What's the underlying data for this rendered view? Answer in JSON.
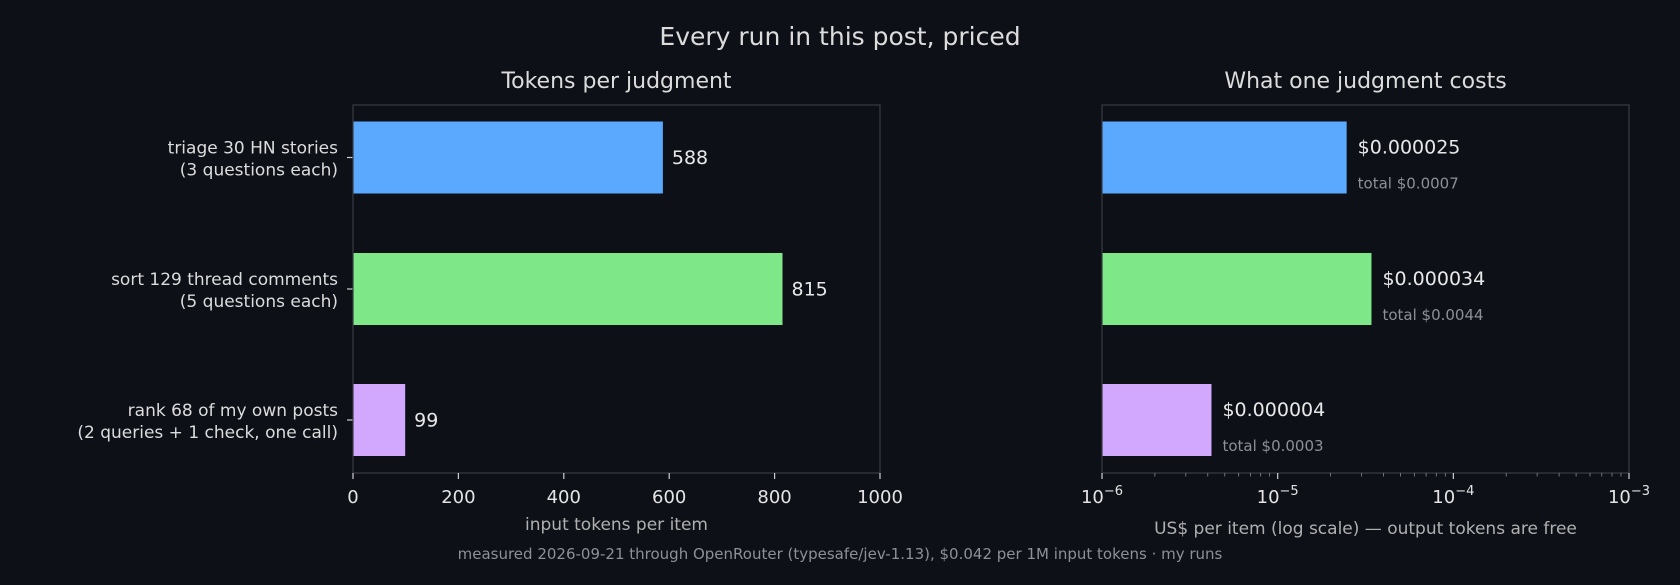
{
  "title": "Every run in this post, priced",
  "footer": "measured 2026-09-21 through OpenRouter (typesafe/jev-1.13), $0.042 per 1M input tokens · my runs",
  "categories": [
    [
      "triage 30 HN stories",
      "(3 questions each)"
    ],
    [
      "sort 129 thread comments",
      "(5 questions each)"
    ],
    [
      "rank 68 of my own posts",
      "(2 queries + 1 check, one call)"
    ]
  ],
  "colors": [
    "#5aa9ff",
    "#7ee787",
    "#d2a8ff"
  ],
  "chart_data": [
    {
      "type": "bar",
      "orientation": "horizontal",
      "title": "Tokens per judgment",
      "xlabel": "input tokens per item",
      "xlim": [
        0,
        1000
      ],
      "xticks": [
        0,
        200,
        400,
        600,
        800,
        1000
      ],
      "values": [
        588,
        815,
        99
      ],
      "value_labels": [
        "588",
        "815",
        "99"
      ]
    },
    {
      "type": "bar",
      "orientation": "horizontal",
      "title": "What one judgment costs",
      "xlabel": "US$ per item (log scale) — output tokens are free",
      "xscale": "log",
      "xlim": [
        1e-06,
        0.001
      ],
      "xticks": [
        {
          "base": "10",
          "exp": "−6",
          "value": 1e-06
        },
        {
          "base": "10",
          "exp": "−5",
          "value": 1e-05
        },
        {
          "base": "10",
          "exp": "−4",
          "value": 0.0001
        },
        {
          "base": "10",
          "exp": "−3",
          "value": 0.001
        }
      ],
      "values": [
        2.47e-05,
        3.42e-05,
        4.2e-06
      ],
      "value_labels": [
        "$0.000025",
        "$0.000034",
        "$0.000004"
      ],
      "total_labels": [
        "total $0.0007",
        "total $0.0044",
        "total $0.0003"
      ]
    }
  ]
}
